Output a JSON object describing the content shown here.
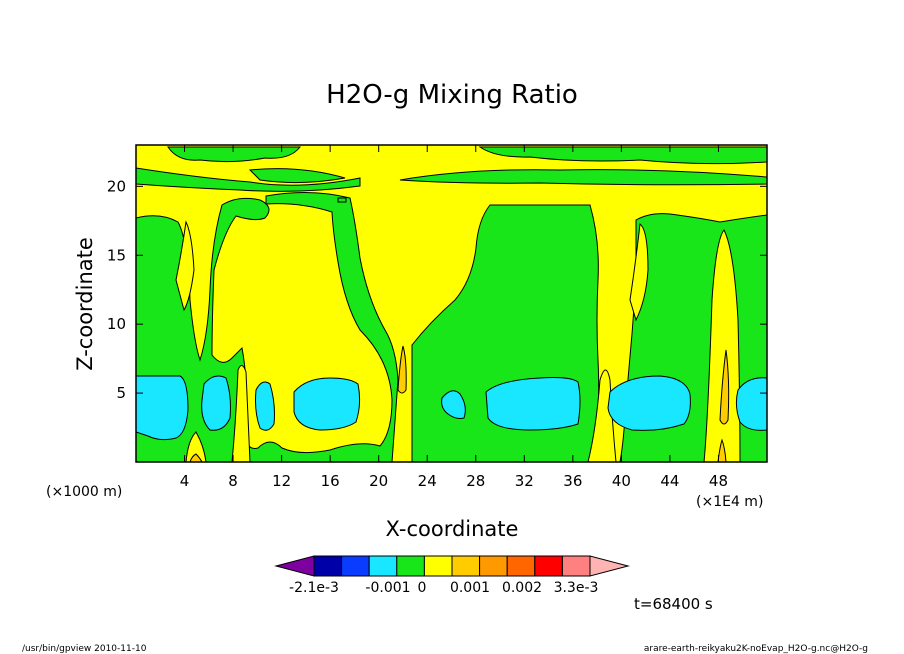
{
  "chart_data": {
    "type": "heatmap",
    "title": "H2O-g Mixing Ratio",
    "xlabel": "X-coordinate",
    "ylabel": "Z-coordinate",
    "x_unit_left": "(×1000 m)",
    "x_unit_right": "(×1E4 m)",
    "xlim": [
      0,
      52
    ],
    "ylim": [
      0,
      23
    ],
    "x_ticks": [
      4,
      8,
      12,
      16,
      20,
      24,
      28,
      32,
      36,
      40,
      44,
      48
    ],
    "y_ticks": [
      5,
      10,
      15,
      20
    ],
    "time_label": "t=68400 s",
    "colorbar": {
      "colors": [
        "#7f00a0",
        "#0000a8",
        "#0a3cff",
        "#19e6ff",
        "#19e619",
        "#ffff00",
        "#ffcc00",
        "#ff9900",
        "#ff6600",
        "#ff0000",
        "#ff8080",
        "#ffb4b4"
      ],
      "tick_labels": [
        "-2.1e-3",
        "-0.001",
        "0",
        "0.001",
        "0.002",
        "3.3e-3"
      ]
    },
    "regions": {
      "green_bands": [
        [
          0,
          6.5
        ],
        [
          9,
          13
        ],
        [
          22.5,
          38.5
        ],
        [
          41.5,
          52
        ]
      ],
      "cyan_blobs": [
        {
          "x": [
            0.3,
            4.1
          ],
          "z": [
            2.0,
            6.5
          ]
        },
        {
          "x": [
            5.3,
            7.7
          ],
          "z": [
            2.7,
            6.0
          ]
        },
        {
          "x": [
            9.7,
            11.2
          ],
          "z": [
            2.3,
            5.8
          ]
        },
        {
          "x": [
            12.8,
            18.3
          ],
          "z": [
            2.9,
            6.2
          ]
        },
        {
          "x": [
            24.8,
            26.8
          ],
          "z": [
            3.0,
            5.2
          ]
        },
        {
          "x": [
            28.6,
            35.8
          ],
          "z": [
            2.8,
            6.2
          ]
        },
        {
          "x": [
            38.5,
            44.8
          ],
          "z": [
            2.8,
            6.2
          ]
        },
        {
          "x": [
            48.3,
            52
          ],
          "z": [
            2.6,
            6.0
          ]
        }
      ],
      "orange_streaks": [
        [
          21.2,
          6.0
        ],
        [
          47.2,
          5.2
        ]
      ]
    }
  },
  "footer": {
    "left": "/usr/bin/gpview   2010-11-10",
    "right": "arare-earth-reikyaku2K-noEvap_H2O-g.nc@H2O-g"
  }
}
